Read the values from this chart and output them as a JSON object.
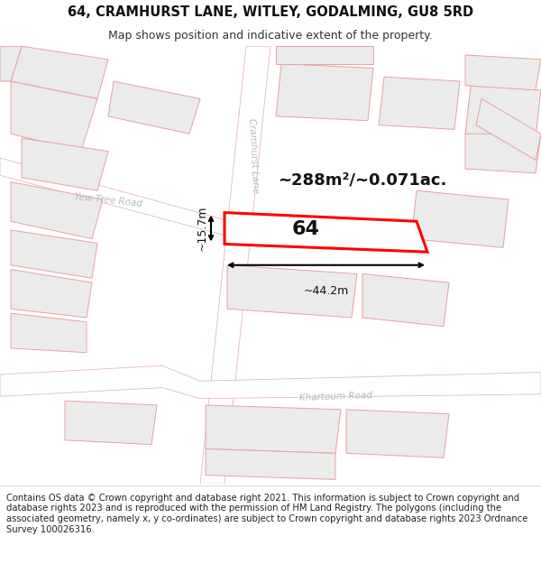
{
  "title_line1": "64, CRAMHURST LANE, WITLEY, GODALMING, GU8 5RD",
  "title_line2": "Map shows position and indicative extent of the property.",
  "footer_text": "Contains OS data © Crown copyright and database right 2021. This information is subject to Crown copyright and database rights 2023 and is reproduced with the permission of HM Land Registry. The polygons (including the associated geometry, namely x, y co-ordinates) are subject to Crown copyright and database rights 2023 Ordnance Survey 100026316.",
  "bg_color": "#ffffff",
  "map_bg": "#ffffff",
  "road_fill": "#ffffff",
  "road_edge": "#e8b8b8",
  "building_fill": "#ebebeb",
  "building_stroke": "#e8a0a0",
  "highlight_fill": "#ffffff",
  "highlight_stroke": "#ff0000",
  "road_label_color": "#aaaaaa",
  "area_label": "~288m²/~0.071ac.",
  "width_label": "~44.2m",
  "height_label": "~15.7m",
  "plot_number": "64",
  "cramhurst_lane_label": "Cramhurst Lane",
  "yew_tree_road_label": "Yew Tree Road",
  "khartoum_road_label": "Khartoum Road",
  "title_fontsize": 10.5,
  "subtitle_fontsize": 9,
  "footer_fontsize": 7.2
}
